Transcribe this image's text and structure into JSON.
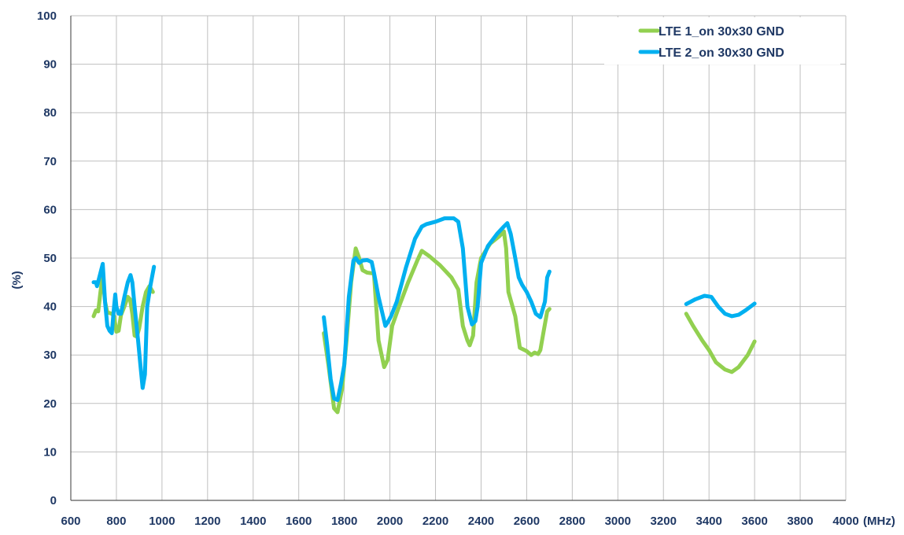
{
  "chart_data": {
    "type": "line",
    "title": "",
    "xlabel": "(MHz)",
    "ylabel": "(%)",
    "xlim": [
      600,
      4000
    ],
    "ylim": [
      0,
      100
    ],
    "x_ticks": [
      600,
      800,
      1000,
      1200,
      1400,
      1600,
      1800,
      2000,
      2200,
      2400,
      2600,
      2800,
      3000,
      3200,
      3400,
      3600,
      3800,
      4000
    ],
    "y_ticks": [
      0,
      10,
      20,
      30,
      40,
      50,
      60,
      70,
      80,
      90,
      100
    ],
    "grid": true,
    "legend_position": "top-right",
    "series": [
      {
        "name": "LTE 1_on 30x30 GND",
        "color": "#92d050",
        "segments": [
          [
            [
              700,
              38
            ],
            [
              710,
              39.2
            ],
            [
              720,
              39
            ],
            [
              730,
              43
            ],
            [
              740,
              46.5
            ],
            [
              750,
              41
            ],
            [
              760,
              38.8
            ],
            [
              780,
              38.5
            ],
            [
              790,
              38
            ],
            [
              800,
              34.8
            ],
            [
              810,
              35
            ],
            [
              820,
              38.2
            ],
            [
              835,
              40
            ],
            [
              850,
              42
            ],
            [
              860,
              41.5
            ],
            [
              870,
              38.5
            ],
            [
              880,
              34
            ],
            [
              890,
              33.8
            ],
            [
              900,
              35.5
            ],
            [
              915,
              40
            ],
            [
              930,
              43
            ],
            [
              945,
              44.2
            ],
            [
              960,
              43
            ]
          ],
          [
            [
              1710,
              34.5
            ],
            [
              1730,
              28
            ],
            [
              1755,
              19
            ],
            [
              1770,
              18.2
            ],
            [
              1790,
              23
            ],
            [
              1810,
              33
            ],
            [
              1830,
              45
            ],
            [
              1850,
              52
            ],
            [
              1865,
              50
            ],
            [
              1880,
              47.5
            ],
            [
              1900,
              47
            ],
            [
              1930,
              46.8
            ],
            [
              1950,
              33
            ],
            [
              1975,
              27.5
            ],
            [
              1990,
              29
            ],
            [
              2010,
              36
            ],
            [
              2040,
              40
            ],
            [
              2080,
              45
            ],
            [
              2120,
              49.5
            ],
            [
              2140,
              51.5
            ],
            [
              2170,
              50.5
            ],
            [
              2220,
              48.5
            ],
            [
              2270,
              46
            ],
            [
              2300,
              43.5
            ],
            [
              2320,
              36
            ],
            [
              2340,
              33
            ],
            [
              2350,
              32
            ],
            [
              2365,
              34
            ],
            [
              2380,
              45
            ],
            [
              2400,
              50
            ],
            [
              2440,
              53
            ],
            [
              2480,
              54.5
            ],
            [
              2500,
              55.5
            ],
            [
              2510,
              52
            ],
            [
              2520,
              43
            ],
            [
              2550,
              38
            ],
            [
              2570,
              31.5
            ],
            [
              2600,
              30.8
            ],
            [
              2620,
              30
            ],
            [
              2635,
              30.5
            ],
            [
              2650,
              30.2
            ],
            [
              2660,
              31
            ],
            [
              2675,
              35
            ],
            [
              2690,
              39
            ],
            [
              2700,
              39.5
            ]
          ],
          [
            [
              3300,
              38.5
            ],
            [
              3330,
              36
            ],
            [
              3370,
              33
            ],
            [
              3400,
              31
            ],
            [
              3430,
              28.5
            ],
            [
              3470,
              27
            ],
            [
              3500,
              26.5
            ],
            [
              3530,
              27.5
            ],
            [
              3570,
              30
            ],
            [
              3600,
              32.8
            ]
          ]
        ]
      },
      {
        "name": "LTE 2_on 30x30 GND",
        "color": "#00b0f0",
        "segments": [
          [
            [
              700,
              45
            ],
            [
              710,
              45
            ],
            [
              715,
              44.2
            ],
            [
              725,
              46
            ],
            [
              740,
              48.8
            ],
            [
              750,
              41
            ],
            [
              760,
              36
            ],
            [
              770,
              35
            ],
            [
              780,
              34.5
            ],
            [
              790,
              40
            ],
            [
              795,
              42.5
            ],
            [
              800,
              40
            ],
            [
              810,
              38.5
            ],
            [
              820,
              38.5
            ],
            [
              835,
              42
            ],
            [
              850,
              45
            ],
            [
              862,
              46.5
            ],
            [
              870,
              45
            ],
            [
              880,
              40
            ],
            [
              895,
              33
            ],
            [
              905,
              28
            ],
            [
              915,
              23.2
            ],
            [
              925,
              26
            ],
            [
              935,
              40
            ],
            [
              950,
              44.5
            ],
            [
              965,
              48.2
            ]
          ],
          [
            [
              1710,
              37.8
            ],
            [
              1725,
              32
            ],
            [
              1740,
              25
            ],
            [
              1755,
              21
            ],
            [
              1770,
              20.7
            ],
            [
              1785,
              24
            ],
            [
              1800,
              28
            ],
            [
              1820,
              42
            ],
            [
              1840,
              49.5
            ],
            [
              1850,
              50
            ],
            [
              1865,
              49
            ],
            [
              1880,
              49.5
            ],
            [
              1900,
              49.6
            ],
            [
              1920,
              49.2
            ],
            [
              1930,
              47
            ],
            [
              1950,
              42
            ],
            [
              1970,
              38
            ],
            [
              1980,
              36
            ],
            [
              1990,
              36.7
            ],
            [
              2005,
              38
            ],
            [
              2030,
              41
            ],
            [
              2070,
              48
            ],
            [
              2110,
              54
            ],
            [
              2140,
              56.5
            ],
            [
              2160,
              57
            ],
            [
              2200,
              57.5
            ],
            [
              2240,
              58.2
            ],
            [
              2280,
              58.2
            ],
            [
              2300,
              57.5
            ],
            [
              2320,
              52
            ],
            [
              2340,
              40
            ],
            [
              2360,
              36.3
            ],
            [
              2375,
              37
            ],
            [
              2385,
              40
            ],
            [
              2400,
              49
            ],
            [
              2430,
              52.5
            ],
            [
              2470,
              55
            ],
            [
              2500,
              56.5
            ],
            [
              2515,
              57.2
            ],
            [
              2530,
              55
            ],
            [
              2550,
              50
            ],
            [
              2565,
              46
            ],
            [
              2580,
              44.5
            ],
            [
              2600,
              43
            ],
            [
              2620,
              41
            ],
            [
              2640,
              38.5
            ],
            [
              2660,
              37.8
            ],
            [
              2680,
              41
            ],
            [
              2690,
              46
            ],
            [
              2700,
              47.2
            ]
          ],
          [
            [
              3300,
              40.5
            ],
            [
              3340,
              41.5
            ],
            [
              3380,
              42.2
            ],
            [
              3410,
              42
            ],
            [
              3440,
              40
            ],
            [
              3470,
              38.5
            ],
            [
              3500,
              38
            ],
            [
              3530,
              38.3
            ],
            [
              3560,
              39.2
            ],
            [
              3600,
              40.6
            ]
          ]
        ]
      }
    ]
  }
}
